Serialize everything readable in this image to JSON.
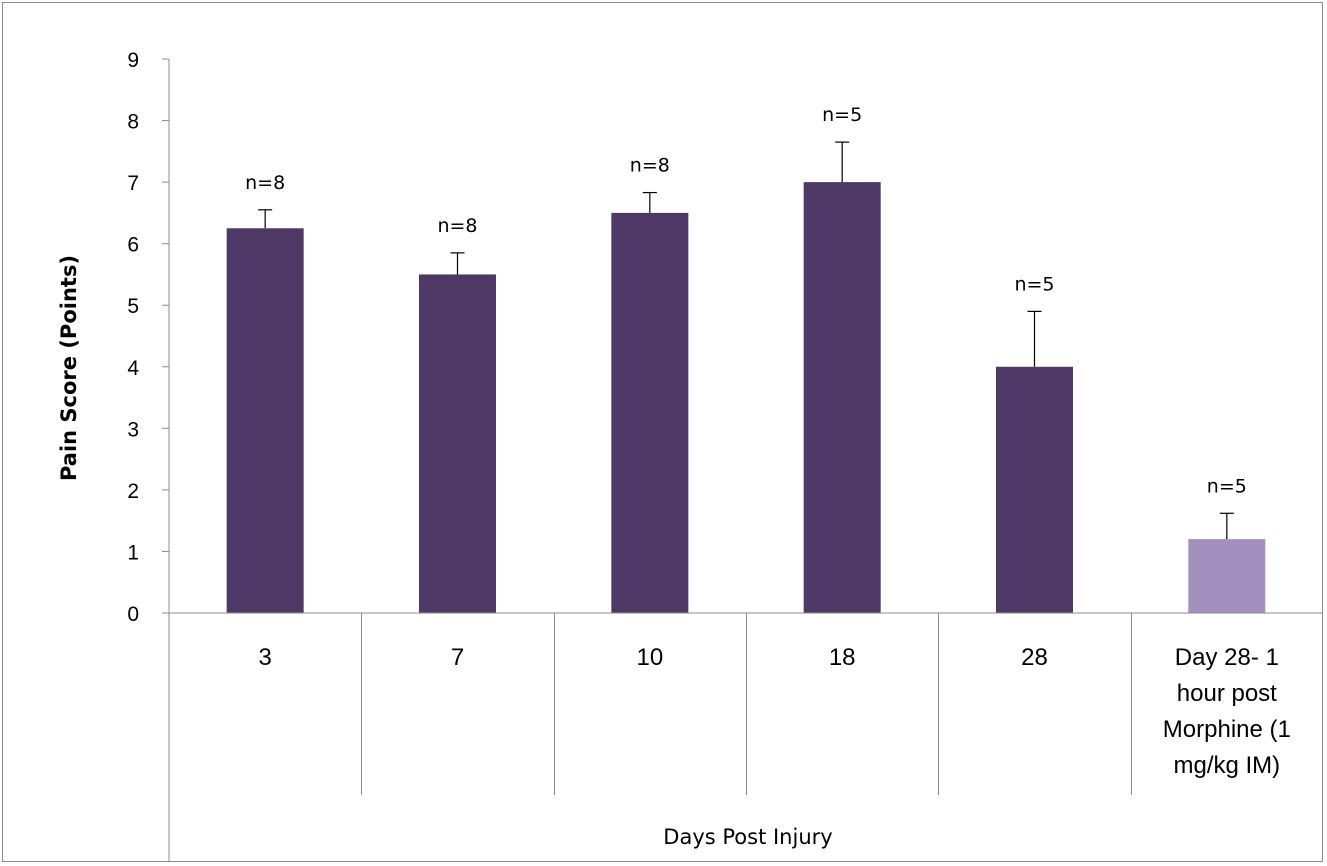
{
  "chart_data": {
    "type": "bar",
    "title": "",
    "xlabel": "Days Post Injury",
    "ylabel": "Pain Score (Points)",
    "ylim": [
      0,
      9
    ],
    "yticks": [
      0,
      1,
      2,
      3,
      4,
      5,
      6,
      7,
      8,
      9
    ],
    "grid": false,
    "legend": "none",
    "categories": [
      [
        "3"
      ],
      [
        "7"
      ],
      [
        "10"
      ],
      [
        "18"
      ],
      [
        "28"
      ],
      [
        "Day 28- 1",
        "hour post",
        "Morphine (1",
        "mg/kg IM)"
      ]
    ],
    "values": [
      6.25,
      5.5,
      6.5,
      7.0,
      4.0,
      1.2
    ],
    "error_upper": [
      0.3,
      0.35,
      0.33,
      0.65,
      0.9,
      0.42
    ],
    "sample_sizes": [
      "n=8",
      "n=8",
      "n=8",
      "n=5",
      "n=5",
      "n=5"
    ],
    "bar_colors": [
      "#4d3866",
      "#4d3866",
      "#4d3866",
      "#4d3866",
      "#4d3866",
      "#a390bf"
    ]
  }
}
